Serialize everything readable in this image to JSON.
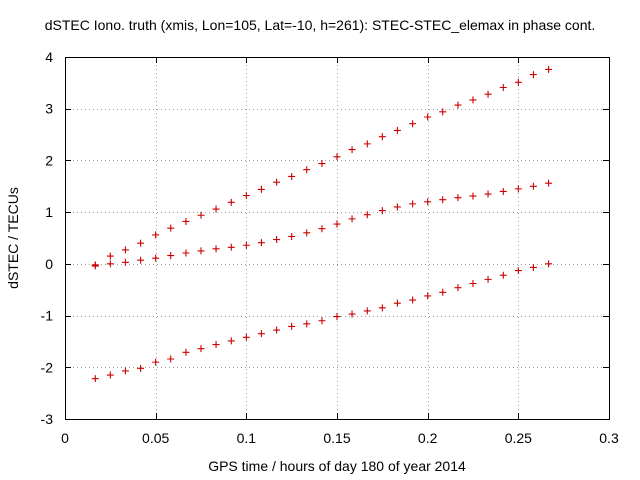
{
  "chart_data": {
    "type": "scatter",
    "title": "dSTEC Iono. truth (xmis, Lon=105, Lat=-10, h=261): STEC-STEC_elemax in phase cont.",
    "xlabel": "GPS time / hours of day 180 of year 2014",
    "ylabel": "dSTEC  / TECUs",
    "xlim": [
      0,
      0.3
    ],
    "ylim": [
      -3,
      4
    ],
    "xticks": [
      0,
      0.05,
      0.1,
      0.15,
      0.2,
      0.25,
      0.3
    ],
    "xtick_labels": [
      "0",
      "0.05",
      "0.1",
      "0.15",
      "0.2",
      "0.25",
      "0.3"
    ],
    "yticks": [
      -3,
      -2,
      -1,
      0,
      1,
      2,
      3,
      4
    ],
    "ytick_labels": [
      "-3",
      "-2",
      "-1",
      "0",
      "1",
      "2",
      "3",
      "4"
    ],
    "grid": true,
    "marker": "+",
    "marker_color": "#cc0000",
    "series": [
      {
        "x": [
          0.0167,
          0.025,
          0.0333,
          0.0417,
          0.05,
          0.0583,
          0.0667,
          0.075,
          0.0833,
          0.0917,
          0.1,
          0.1083,
          0.1167,
          0.125,
          0.1333,
          0.1417,
          0.15,
          0.1583,
          0.1667,
          0.175,
          0.1833,
          0.1917,
          0.2,
          0.2083,
          0.2167,
          0.225,
          0.2333,
          0.2417,
          0.25,
          0.2583,
          0.2667
        ],
        "y": [
          -0.04,
          0.15,
          0.27,
          0.4,
          0.56,
          0.69,
          0.82,
          0.94,
          1.06,
          1.19,
          1.32,
          1.44,
          1.58,
          1.69,
          1.82,
          1.94,
          2.07,
          2.21,
          2.32,
          2.46,
          2.58,
          2.71,
          2.84,
          2.94,
          3.07,
          3.17,
          3.28,
          3.41,
          3.51,
          3.66,
          3.76
        ]
      },
      {
        "x": [
          0.0167,
          0.025,
          0.0333,
          0.0417,
          0.05,
          0.0583,
          0.0667,
          0.075,
          0.0833,
          0.0917,
          0.1,
          0.1083,
          0.1167,
          0.125,
          0.1333,
          0.1417,
          0.15,
          0.1583,
          0.1667,
          0.175,
          0.1833,
          0.1917,
          0.2,
          0.2083,
          0.2167,
          0.225,
          0.2333,
          0.2417,
          0.25,
          0.2583,
          0.2667
        ],
        "y": [
          -0.02,
          0.0,
          0.03,
          0.07,
          0.11,
          0.16,
          0.21,
          0.25,
          0.29,
          0.32,
          0.36,
          0.41,
          0.47,
          0.53,
          0.6,
          0.68,
          0.77,
          0.87,
          0.95,
          1.03,
          1.1,
          1.16,
          1.2,
          1.24,
          1.28,
          1.31,
          1.35,
          1.4,
          1.45,
          1.5,
          1.56
        ]
      },
      {
        "x": [
          0.0167,
          0.025,
          0.0333,
          0.0417,
          0.05,
          0.0583,
          0.0667,
          0.075,
          0.0833,
          0.0917,
          0.1,
          0.1083,
          0.1167,
          0.125,
          0.1333,
          0.1417,
          0.15,
          0.1583,
          0.1667,
          0.175,
          0.1833,
          0.1917,
          0.2,
          0.2083,
          0.2167,
          0.225,
          0.2333,
          0.2417,
          0.25,
          0.2583,
          0.2667
        ],
        "y": [
          -2.22,
          -2.15,
          -2.07,
          -2.02,
          -1.9,
          -1.84,
          -1.71,
          -1.64,
          -1.56,
          -1.49,
          -1.42,
          -1.35,
          -1.28,
          -1.21,
          -1.16,
          -1.1,
          -1.02,
          -0.97,
          -0.91,
          -0.85,
          -0.76,
          -0.7,
          -0.62,
          -0.55,
          -0.46,
          -0.38,
          -0.3,
          -0.22,
          -0.13,
          -0.07,
          0.0
        ]
      }
    ]
  }
}
